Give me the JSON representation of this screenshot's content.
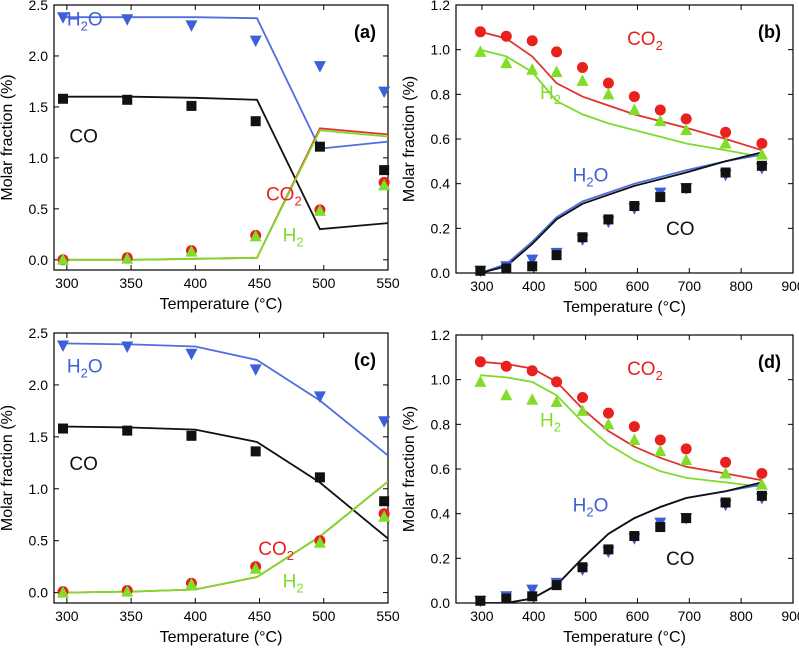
{
  "colors": {
    "H2O": "#3f5fd8",
    "CO": "#111111",
    "CO2": "#e8201e",
    "H2": "#80dd2a",
    "H2O_line": "#4f6fe0",
    "CO2_line": "#e53030",
    "H2_line": "#7ddc2a"
  },
  "chart_data": [
    {
      "type": "scatter",
      "panel_label": "(a)",
      "xlabel": "Temperature (°C)",
      "ylabel": "Molar fraction (%)",
      "xlim": [
        290,
        550
      ],
      "ylim": [
        -0.1,
        2.5
      ],
      "xticks": [
        "300",
        "350",
        "400",
        "450",
        "500",
        "550"
      ],
      "yticks": [
        "0.0",
        "0.5",
        "1.0",
        "1.5",
        "2.0",
        "2.5"
      ],
      "labels": [
        {
          "base": "H",
          "sub": "2",
          "rest": "O",
          "color": "H2O",
          "x": 300,
          "y": 2.3
        },
        {
          "base": "CO",
          "sub": "",
          "rest": "",
          "color": "CO",
          "x": 302,
          "y": 1.15
        },
        {
          "base": "CO",
          "sub": "2",
          "rest": "",
          "color": "CO2",
          "x": 455,
          "y": 0.58
        },
        {
          "base": "H",
          "sub": "2",
          "rest": "",
          "color": "H2",
          "x": 468,
          "y": 0.18
        }
      ],
      "series": [
        {
          "name": "H2O",
          "marker": "triangle-down",
          "x": [
            297,
            347,
            397,
            447,
            497,
            547
          ],
          "y": [
            2.38,
            2.36,
            2.3,
            2.15,
            1.9,
            1.65
          ]
        },
        {
          "name": "CO",
          "marker": "square",
          "x": [
            297,
            347,
            397,
            447,
            497,
            547
          ],
          "y": [
            1.58,
            1.57,
            1.51,
            1.36,
            1.11,
            0.88
          ]
        },
        {
          "name": "CO2",
          "marker": "circle",
          "x": [
            297,
            347,
            397,
            447,
            497,
            547
          ],
          "y": [
            0.0,
            0.02,
            0.09,
            0.24,
            0.49,
            0.76
          ]
        },
        {
          "name": "H2",
          "marker": "triangle-up",
          "x": [
            297,
            347,
            397,
            447,
            497,
            547
          ],
          "y": [
            0.0,
            0.01,
            0.08,
            0.23,
            0.48,
            0.73
          ]
        }
      ],
      "model_lines": [
        {
          "name": "H2O",
          "x": [
            295,
            350,
            400,
            448,
            497,
            550
          ],
          "y": [
            2.38,
            2.38,
            2.38,
            2.37,
            1.09,
            1.16
          ]
        },
        {
          "name": "CO",
          "x": [
            295,
            350,
            400,
            448,
            497,
            550
          ],
          "y": [
            1.6,
            1.6,
            1.59,
            1.57,
            0.3,
            0.36
          ]
        },
        {
          "name": "CO2",
          "x": [
            295,
            350,
            400,
            448,
            497,
            550
          ],
          "y": [
            0.0,
            0.0,
            0.01,
            0.02,
            1.29,
            1.23
          ]
        },
        {
          "name": "H2",
          "x": [
            295,
            350,
            400,
            448,
            497,
            550
          ],
          "y": [
            0.0,
            0.0,
            0.01,
            0.02,
            1.27,
            1.21
          ]
        }
      ]
    },
    {
      "type": "scatter",
      "panel_label": "(b)",
      "xlabel": "Temperature (°C)",
      "ylabel": "Molar fraction (%)",
      "xlim": [
        250,
        900
      ],
      "ylim": [
        0.0,
        1.2
      ],
      "xticks": [
        "300",
        "400",
        "500",
        "600",
        "700",
        "800",
        "900"
      ],
      "yticks": [
        "0.0",
        "0.2",
        "0.4",
        "0.6",
        "0.8",
        "1.0",
        "1.2"
      ],
      "labels": [
        {
          "base": "CO",
          "sub": "2",
          "rest": "",
          "color": "CO2",
          "x": 580,
          "y": 1.02
        },
        {
          "base": "H",
          "sub": "2",
          "rest": "",
          "color": "H2",
          "x": 412,
          "y": 0.78
        },
        {
          "base": "H",
          "sub": "2",
          "rest": "O",
          "color": "H2O",
          "x": 475,
          "y": 0.41
        },
        {
          "base": "CO",
          "sub": "",
          "rest": "",
          "color": "CO",
          "x": 655,
          "y": 0.17
        }
      ],
      "series": [
        {
          "name": "CO2",
          "marker": "circle",
          "x": [
            297,
            347,
            397,
            444,
            494,
            544,
            594,
            644,
            694,
            770,
            840
          ],
          "y": [
            1.08,
            1.06,
            1.04,
            0.99,
            0.92,
            0.85,
            0.79,
            0.73,
            0.69,
            0.63,
            0.58
          ]
        },
        {
          "name": "H2",
          "marker": "triangle-up",
          "x": [
            297,
            347,
            397,
            444,
            494,
            544,
            594,
            644,
            694,
            770,
            840
          ],
          "y": [
            0.99,
            0.94,
            0.91,
            0.9,
            0.86,
            0.8,
            0.73,
            0.68,
            0.64,
            0.58,
            0.53
          ]
        },
        {
          "name": "H2O",
          "marker": "triangle-down",
          "x": [
            297,
            347,
            397,
            444,
            494,
            544,
            594,
            644,
            694,
            770,
            840
          ],
          "y": [
            0.01,
            0.03,
            0.06,
            0.09,
            0.15,
            0.23,
            0.29,
            0.36,
            0.38,
            0.44,
            0.47
          ]
        },
        {
          "name": "CO",
          "marker": "square",
          "x": [
            297,
            347,
            397,
            444,
            494,
            544,
            594,
            644,
            694,
            770,
            840
          ],
          "y": [
            0.01,
            0.02,
            0.03,
            0.08,
            0.16,
            0.24,
            0.3,
            0.34,
            0.38,
            0.45,
            0.48
          ]
        }
      ],
      "model_lines": [
        {
          "name": "CO2",
          "x": [
            297,
            347,
            397,
            444,
            494,
            544,
            594,
            644,
            694,
            770,
            840
          ],
          "y": [
            1.08,
            1.05,
            0.97,
            0.85,
            0.79,
            0.75,
            0.71,
            0.68,
            0.65,
            0.6,
            0.55
          ]
        },
        {
          "name": "H2",
          "x": [
            297,
            347,
            397,
            444,
            494,
            544,
            594,
            644,
            694,
            770,
            840
          ],
          "y": [
            1.0,
            0.97,
            0.9,
            0.77,
            0.71,
            0.67,
            0.64,
            0.61,
            0.58,
            0.55,
            0.52
          ]
        },
        {
          "name": "H2O",
          "x": [
            297,
            347,
            397,
            444,
            494,
            544,
            594,
            644,
            694,
            770,
            840
          ],
          "y": [
            0.0,
            0.04,
            0.14,
            0.25,
            0.32,
            0.36,
            0.4,
            0.43,
            0.46,
            0.5,
            0.53
          ]
        },
        {
          "name": "CO",
          "x": [
            297,
            347,
            397,
            444,
            494,
            544,
            594,
            644,
            694,
            770,
            840
          ],
          "y": [
            0.0,
            0.03,
            0.13,
            0.24,
            0.31,
            0.35,
            0.39,
            0.42,
            0.45,
            0.5,
            0.54
          ]
        }
      ]
    },
    {
      "type": "scatter",
      "panel_label": "(c)",
      "xlabel": "Temperature (°C)",
      "ylabel": "Molar fraction (%)",
      "xlim": [
        290,
        550
      ],
      "ylim": [
        -0.1,
        2.5
      ],
      "xticks": [
        "300",
        "350",
        "400",
        "450",
        "500",
        "550"
      ],
      "yticks": [
        "0.0",
        "0.5",
        "1.0",
        "1.5",
        "2.0",
        "2.5"
      ],
      "labels": [
        {
          "base": "H",
          "sub": "2",
          "rest": "O",
          "color": "H2O",
          "x": 300,
          "y": 2.12
        },
        {
          "base": "CO",
          "sub": "",
          "rest": "",
          "color": "CO",
          "x": 302,
          "y": 1.18
        },
        {
          "base": "CO",
          "sub": "2",
          "rest": "",
          "color": "CO2",
          "x": 449,
          "y": 0.36
        },
        {
          "base": "H",
          "sub": "2",
          "rest": "",
          "color": "H2",
          "x": 468,
          "y": 0.05
        }
      ],
      "series": [
        {
          "name": "H2O",
          "marker": "triangle-down",
          "x": [
            297,
            347,
            397,
            447,
            497,
            547
          ],
          "y": [
            2.38,
            2.37,
            2.3,
            2.15,
            1.89,
            1.65
          ]
        },
        {
          "name": "CO",
          "marker": "square",
          "x": [
            297,
            347,
            397,
            447,
            497,
            547
          ],
          "y": [
            1.58,
            1.56,
            1.51,
            1.36,
            1.11,
            0.88
          ]
        },
        {
          "name": "CO2",
          "marker": "circle",
          "x": [
            297,
            347,
            397,
            447,
            497,
            547
          ],
          "y": [
            0.01,
            0.02,
            0.09,
            0.25,
            0.5,
            0.76
          ]
        },
        {
          "name": "H2",
          "marker": "triangle-up",
          "x": [
            297,
            347,
            397,
            447,
            497,
            547
          ],
          "y": [
            0.0,
            0.01,
            0.08,
            0.23,
            0.48,
            0.73
          ]
        }
      ],
      "model_lines": [
        {
          "name": "H2O",
          "x": [
            295,
            350,
            400,
            448,
            497,
            550
          ],
          "y": [
            2.4,
            2.39,
            2.37,
            2.24,
            1.85,
            1.32
          ]
        },
        {
          "name": "CO",
          "x": [
            295,
            350,
            400,
            448,
            497,
            550
          ],
          "y": [
            1.6,
            1.59,
            1.57,
            1.45,
            1.06,
            0.52
          ]
        },
        {
          "name": "CO2",
          "x": [
            295,
            350,
            400,
            448,
            497,
            550
          ],
          "y": [
            0.0,
            0.01,
            0.03,
            0.15,
            0.54,
            1.07
          ]
        },
        {
          "name": "H2",
          "x": [
            295,
            350,
            400,
            448,
            497,
            550
          ],
          "y": [
            0.0,
            0.01,
            0.03,
            0.15,
            0.54,
            1.07
          ]
        }
      ]
    },
    {
      "type": "scatter",
      "panel_label": "(d)",
      "xlabel": "Temperature (°C)",
      "ylabel": "Molar fraction (%)",
      "xlim": [
        250,
        900
      ],
      "ylim": [
        0.0,
        1.2
      ],
      "xticks": [
        "300",
        "400",
        "500",
        "600",
        "700",
        "800",
        "900"
      ],
      "yticks": [
        "0.0",
        "0.2",
        "0.4",
        "0.6",
        "0.8",
        "1.0",
        "1.2"
      ],
      "labels": [
        {
          "base": "CO",
          "sub": "2",
          "rest": "",
          "color": "CO2",
          "x": 580,
          "y": 1.02
        },
        {
          "base": "H",
          "sub": "2",
          "rest": "",
          "color": "H2",
          "x": 412,
          "y": 0.79
        },
        {
          "base": "H",
          "sub": "2",
          "rest": "O",
          "color": "H2O",
          "x": 475,
          "y": 0.41
        },
        {
          "base": "CO",
          "sub": "",
          "rest": "",
          "color": "CO",
          "x": 655,
          "y": 0.17
        }
      ],
      "series": [
        {
          "name": "CO2",
          "marker": "circle",
          "x": [
            297,
            347,
            397,
            444,
            494,
            544,
            594,
            644,
            694,
            770,
            840
          ],
          "y": [
            1.08,
            1.06,
            1.04,
            0.99,
            0.92,
            0.85,
            0.79,
            0.73,
            0.69,
            0.63,
            0.58
          ]
        },
        {
          "name": "H2",
          "marker": "triangle-up",
          "x": [
            297,
            347,
            397,
            444,
            494,
            544,
            594,
            644,
            694,
            770,
            840
          ],
          "y": [
            0.99,
            0.93,
            0.91,
            0.9,
            0.86,
            0.8,
            0.73,
            0.68,
            0.64,
            0.58,
            0.53
          ]
        },
        {
          "name": "H2O",
          "marker": "triangle-down",
          "x": [
            297,
            347,
            397,
            444,
            494,
            544,
            594,
            644,
            694,
            770,
            840
          ],
          "y": [
            0.01,
            0.03,
            0.06,
            0.09,
            0.15,
            0.23,
            0.29,
            0.36,
            0.38,
            0.44,
            0.47
          ]
        },
        {
          "name": "CO",
          "marker": "square",
          "x": [
            297,
            347,
            397,
            444,
            494,
            544,
            594,
            644,
            694,
            770,
            840
          ],
          "y": [
            0.01,
            0.02,
            0.03,
            0.08,
            0.16,
            0.24,
            0.3,
            0.34,
            0.38,
            0.45,
            0.48
          ]
        }
      ],
      "model_lines": [
        {
          "name": "CO2",
          "x": [
            297,
            347,
            397,
            444,
            494,
            544,
            594,
            644,
            694,
            770,
            840
          ],
          "y": [
            1.08,
            1.07,
            1.05,
            0.99,
            0.87,
            0.77,
            0.7,
            0.65,
            0.61,
            0.58,
            0.55
          ]
        },
        {
          "name": "H2",
          "x": [
            297,
            347,
            397,
            444,
            494,
            544,
            594,
            644,
            694,
            770,
            840
          ],
          "y": [
            1.02,
            1.01,
            0.99,
            0.93,
            0.81,
            0.71,
            0.64,
            0.59,
            0.56,
            0.54,
            0.52
          ]
        },
        {
          "name": "H2O",
          "x": [
            297,
            347,
            397,
            444,
            494,
            544,
            594,
            644,
            694,
            770,
            840
          ],
          "y": [
            0.0,
            0.0,
            0.02,
            0.08,
            0.2,
            0.31,
            0.38,
            0.43,
            0.47,
            0.5,
            0.53
          ]
        },
        {
          "name": "CO",
          "x": [
            297,
            347,
            397,
            444,
            494,
            544,
            594,
            644,
            694,
            770,
            840
          ],
          "y": [
            0.0,
            0.0,
            0.02,
            0.08,
            0.2,
            0.31,
            0.38,
            0.43,
            0.47,
            0.5,
            0.54
          ]
        }
      ]
    }
  ]
}
